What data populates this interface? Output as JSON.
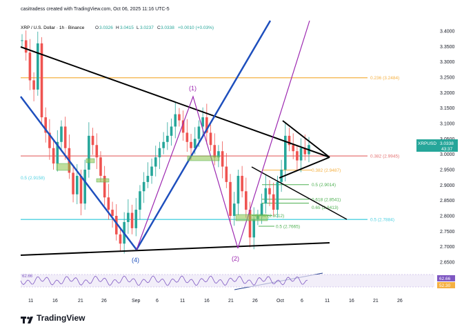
{
  "caption": "casitradess created with TradingView.com, Oct 06, 2025 11:16 UTC-5",
  "brand": "TradingView",
  "header": {
    "symbol": "XRP / U.S. Dollar · 1h · Binance",
    "o_label": "O",
    "o": "3.0326",
    "h_label": "H",
    "h": "3.0415",
    "l_label": "L",
    "l": "3.0237",
    "c_label": "C",
    "c": "3.0338",
    "change": "+0.0010 (+0.03%)"
  },
  "colors": {
    "up": "#26a69a",
    "down": "#ef5350",
    "trend_black": "#000000",
    "channel_blue": "#1e4fbd",
    "wave_purple": "#9c27b0",
    "fib_orange": "#f5b041",
    "fib_red": "#e57373",
    "fib_green": "#4caf50",
    "fib_teal": "#4dd0e1",
    "rsi_purple": "#7e57c2"
  },
  "chart_data": {
    "type": "candlestick",
    "title": "XRP / U.S. Dollar · 1h · Binance",
    "y_ticks": [
      "3.4000",
      "3.3500",
      "3.3000",
      "3.2500",
      "3.2000",
      "3.1500",
      "3.1000",
      "3.0500",
      "3.0000",
      "2.9500",
      "2.9000",
      "2.8500",
      "2.8000",
      "2.7500",
      "2.7000",
      "2.6500"
    ],
    "x_ticks": [
      "11",
      "16",
      "21",
      "26",
      "Sep",
      "6",
      "11",
      "16",
      "21",
      "26",
      "Oct",
      "6",
      "11",
      "16",
      "21",
      "26"
    ],
    "last_price": {
      "symbol": "XRPUSD",
      "price": "3.0338",
      "countdown": "43:37"
    },
    "series_points": [
      [
        7,
        3.37
      ],
      [
        8,
        3.33
      ],
      [
        9,
        3.24
      ],
      [
        10,
        3.21
      ],
      [
        11,
        3.36
      ],
      [
        12,
        3.12
      ],
      [
        13,
        3.07
      ],
      [
        14,
        3.02
      ],
      [
        15,
        2.97
      ],
      [
        16,
        3.04
      ],
      [
        17,
        3.09
      ],
      [
        18,
        3.02
      ],
      [
        19,
        2.94
      ],
      [
        20,
        2.87
      ],
      [
        21,
        2.93
      ],
      [
        22,
        2.84
      ],
      [
        23,
        2.95
      ],
      [
        24,
        3.06
      ],
      [
        25,
        3.03
      ],
      [
        26,
        2.99
      ],
      [
        27,
        2.93
      ],
      [
        28,
        2.86
      ],
      [
        29,
        2.82
      ],
      [
        30,
        2.8
      ],
      [
        31,
        2.74
      ],
      [
        32,
        2.71
      ],
      [
        33,
        2.78
      ],
      [
        34,
        2.81
      ],
      [
        35,
        2.76
      ],
      [
        36,
        2.82
      ],
      [
        37,
        2.88
      ],
      [
        38,
        2.91
      ],
      [
        39,
        2.93
      ],
      [
        40,
        2.96
      ],
      [
        41,
        2.99
      ],
      [
        42,
        3.02
      ],
      [
        43,
        3.04
      ],
      [
        44,
        3.06
      ],
      [
        45,
        3.09
      ],
      [
        46,
        3.13
      ],
      [
        47,
        3.11
      ],
      [
        48,
        3.07
      ],
      [
        49,
        3.04
      ],
      [
        50,
        3.02
      ],
      [
        51,
        3.05
      ],
      [
        52,
        3.09
      ],
      [
        53,
        3.12
      ],
      [
        54,
        3.07
      ],
      [
        55,
        3.03
      ],
      [
        56,
        2.99
      ],
      [
        57,
        3.01
      ],
      [
        58,
        2.96
      ],
      [
        59,
        2.91
      ],
      [
        60,
        2.8
      ],
      [
        61,
        2.84
      ],
      [
        62,
        2.93
      ],
      [
        63,
        2.88
      ],
      [
        64,
        2.82
      ],
      [
        65,
        2.73
      ],
      [
        66,
        2.79
      ],
      [
        67,
        2.8
      ],
      [
        68,
        2.84
      ],
      [
        69,
        2.89
      ],
      [
        70,
        2.87
      ],
      [
        71,
        2.82
      ],
      [
        72,
        2.91
      ],
      [
        73,
        2.95
      ],
      [
        74,
        3.06
      ],
      [
        75,
        3.03
      ],
      [
        76,
        3.01
      ],
      [
        77,
        2.98
      ],
      [
        78,
        3.02
      ],
      [
        79,
        3.0
      ],
      [
        80,
        3.03
      ]
    ],
    "fib_levels": [
      {
        "label": "0.236 (3.2484)",
        "value": 3.2484,
        "color": "#f5b041"
      },
      {
        "label": "0.382 (2.9945)",
        "value": 2.9945,
        "color": "#e57373"
      },
      {
        "label": "0.5 (2.9158)",
        "value": 2.9158,
        "color": "#4dd0e1"
      },
      {
        "label": "0.5 (2.7884)",
        "value": 2.7884,
        "color": "#4dd0e1"
      },
      {
        "label": "0.382 (2.9487)",
        "value": 2.9487,
        "color": "#f5b041"
      },
      {
        "label": "0.5 (2.9014)",
        "value": 2.9014,
        "color": "#4caf50"
      },
      {
        "label": "0.618 (2.8541)",
        "value": 2.8541,
        "color": "#4caf50"
      },
      {
        "label": "0.65 (2.8413)",
        "value": 2.8413,
        "color": "#4caf50"
      },
      {
        "label": "0.786 (2.8012)",
        "value": 2.8012,
        "color": "#4caf50"
      },
      {
        "label": "0.5 (2.7665)",
        "value": 2.7665,
        "color": "#4caf50"
      }
    ],
    "wave_labels": [
      "(1)",
      "(2)",
      "(4)"
    ],
    "rsi": {
      "value_1": "62.66",
      "value_2": "52.30",
      "header_value": "62.66"
    }
  }
}
